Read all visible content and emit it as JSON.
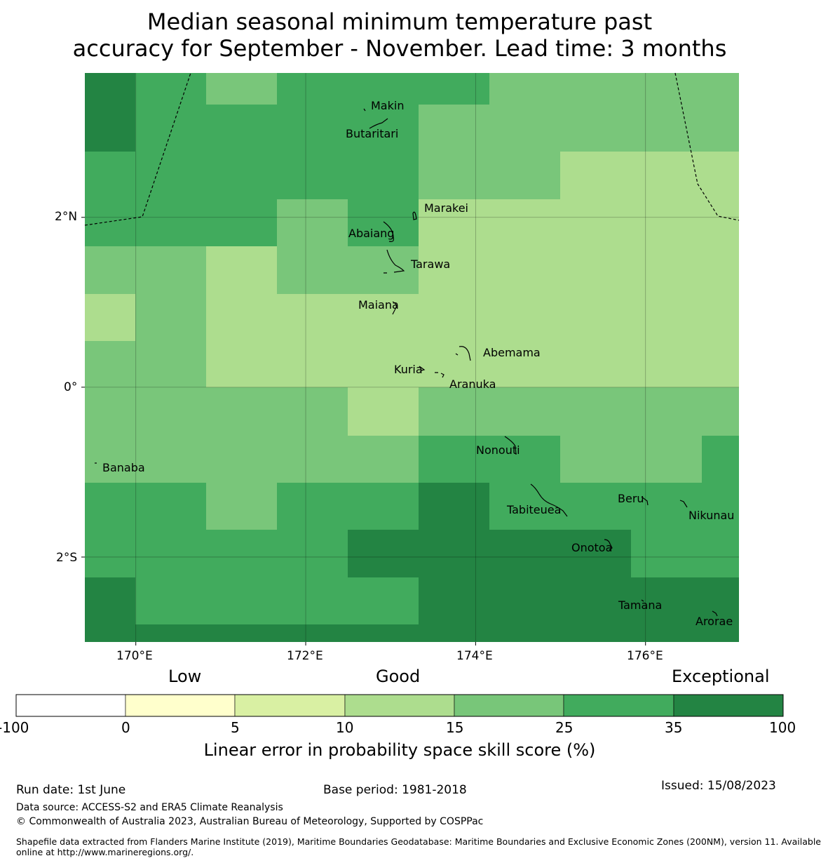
{
  "title": {
    "line1": "Median seasonal minimum temperature past",
    "line2": "accuracy for September - November. Lead time: 3 months"
  },
  "map": {
    "lon_range": [
      169.4,
      177.1
    ],
    "lat_range": [
      -3.0,
      3.7
    ],
    "x_ticks": [
      {
        "lon": 170,
        "label": "170°E"
      },
      {
        "lon": 172,
        "label": "172°E"
      },
      {
        "lon": 174,
        "label": "174°E"
      },
      {
        "lon": 176,
        "label": "176°E"
      }
    ],
    "y_ticks": [
      {
        "lat": 2,
        "label": "2°N"
      },
      {
        "lat": 0,
        "label": "0°"
      },
      {
        "lat": -2,
        "label": "2°S"
      }
    ],
    "grid_lines": true,
    "place_labels": [
      {
        "name": "Makin",
        "lon": 172.95,
        "lat": 3.32
      },
      {
        "name": "Butaritari",
        "lon": 172.75,
        "lat": 3.0
      },
      {
        "name": "Marakei",
        "lon": 173.47,
        "lat": 2.12
      },
      {
        "name": "Abaiang",
        "lon": 172.77,
        "lat": 1.83
      },
      {
        "name": "Tarawa",
        "lon": 173.3,
        "lat": 1.46
      },
      {
        "name": "Maiana",
        "lon": 172.78,
        "lat": 0.97
      },
      {
        "name": "Abemama",
        "lon": 174.1,
        "lat": 0.41
      },
      {
        "name": "Kuria",
        "lon": 172.85,
        "lat": 0.21
      },
      {
        "name": "Aranuka",
        "lon": 173.53,
        "lat": 0.04
      },
      {
        "name": "Nonouti",
        "lon": 174.0,
        "lat": -0.74
      },
      {
        "name": "Banaba",
        "lon": 169.63,
        "lat": -0.94
      },
      {
        "name": "Tabiteuea",
        "lon": 174.37,
        "lat": -1.43
      },
      {
        "name": "Beru",
        "lon": 175.8,
        "lat": -1.3
      },
      {
        "name": "Nikunau",
        "lon": 176.5,
        "lat": -1.5
      },
      {
        "name": "Onotoa",
        "lon": 175.35,
        "lat": -1.88
      },
      {
        "name": "Tamana",
        "lon": 175.8,
        "lat": -2.56
      },
      {
        "name": "Arorae",
        "lon": 176.6,
        "lat": -2.75
      }
    ],
    "cell_colors": {
      "c15": "#79c67a",
      "c25": "#41ab5d",
      "c35": "#238443",
      "c10": "#addd8e"
    }
  },
  "legend": {
    "label_low": "Low",
    "label_good": "Good",
    "label_exceptional": "Exceptional",
    "bins": [
      {
        "from": -100,
        "to": 0,
        "color": "#ffffff"
      },
      {
        "from": 0,
        "to": 5,
        "color": "#ffffcc"
      },
      {
        "from": 5,
        "to": 10,
        "color": "#d9f0a3"
      },
      {
        "from": 10,
        "to": 15,
        "color": "#addd8e"
      },
      {
        "from": 15,
        "to": 25,
        "color": "#78c679"
      },
      {
        "from": 25,
        "to": 35,
        "color": "#41ab5d"
      },
      {
        "from": 35,
        "to": 100,
        "color": "#238443"
      }
    ],
    "tick_labels": [
      "-100",
      "0",
      "5",
      "10",
      "15",
      "25",
      "35",
      "100"
    ],
    "axis_label": "Linear error in probability space skill score (%)"
  },
  "footer": {
    "run_date": "Run date: 1st June",
    "base_period": "Base period: 1981-2018",
    "issued": "Issued: 15/08/2023",
    "data_source": "Data source: ACCESS-S2 and ERA5 Climate Reanalysis",
    "copyright": "© Commonwealth of Australia 2023, Australian Bureau of Meteorology, Supported by COSPPac",
    "shapefile_line1": "Shapefile data extracted from Flanders Marine Institute (2019), Maritime Boundaries Geodatabase: Maritime Boundaries and Exclusive Economic Zones (200NM), version 11. Available",
    "shapefile_line2": "online at http://www.marineregions.org/."
  }
}
